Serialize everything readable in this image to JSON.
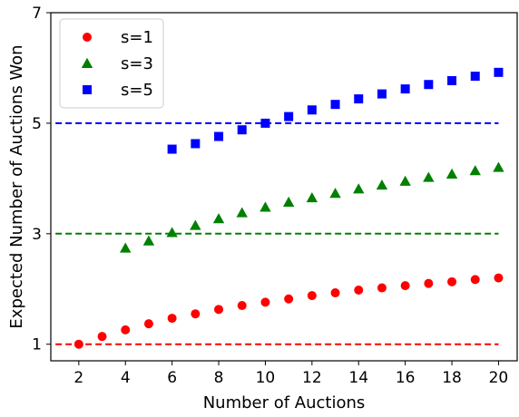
{
  "chart_data": {
    "type": "scatter",
    "title": "",
    "xlabel": "Number of Auctions",
    "ylabel": "Expected Number of Auctions Won",
    "xlim": [
      0.8,
      20.8
    ],
    "ylim": [
      0.7,
      7.0
    ],
    "xticks": [
      2,
      4,
      6,
      8,
      10,
      12,
      14,
      16,
      18,
      20
    ],
    "yticks": [
      1,
      3,
      5,
      7
    ],
    "grid": false,
    "legend_position": "top-left",
    "series": [
      {
        "name": "s=1",
        "color": "#ff0000",
        "marker": "circle",
        "x": [
          2,
          3,
          4,
          5,
          6,
          7,
          8,
          9,
          10,
          11,
          12,
          13,
          14,
          15,
          16,
          17,
          18,
          19,
          20
        ],
        "y": [
          1.0,
          1.14,
          1.26,
          1.37,
          1.47,
          1.55,
          1.63,
          1.7,
          1.76,
          1.82,
          1.88,
          1.93,
          1.98,
          2.02,
          2.06,
          2.1,
          2.13,
          2.17,
          2.2
        ],
        "reference_line": {
          "y": 1,
          "x_start": 1,
          "x_end": 20,
          "style": "dashed"
        }
      },
      {
        "name": "s=3",
        "color": "#008000",
        "marker": "triangle",
        "x": [
          4,
          5,
          6,
          7,
          8,
          9,
          10,
          11,
          12,
          13,
          14,
          15,
          16,
          17,
          18,
          19,
          20
        ],
        "y": [
          2.74,
          2.87,
          3.02,
          3.15,
          3.27,
          3.38,
          3.48,
          3.57,
          3.65,
          3.73,
          3.81,
          3.88,
          3.95,
          4.02,
          4.08,
          4.14,
          4.2
        ],
        "reference_line": {
          "y": 3,
          "x_start": 1,
          "x_end": 20,
          "style": "dashed"
        }
      },
      {
        "name": "s=5",
        "color": "#0000ff",
        "marker": "square",
        "x": [
          6,
          7,
          8,
          9,
          10,
          11,
          12,
          13,
          14,
          15,
          16,
          17,
          18,
          19,
          20
        ],
        "y": [
          4.53,
          4.63,
          4.76,
          4.88,
          5.0,
          5.12,
          5.24,
          5.34,
          5.44,
          5.53,
          5.62,
          5.7,
          5.77,
          5.85,
          5.92
        ],
        "reference_line": {
          "y": 5,
          "x_start": 1,
          "x_end": 20,
          "style": "dashed"
        }
      }
    ]
  }
}
